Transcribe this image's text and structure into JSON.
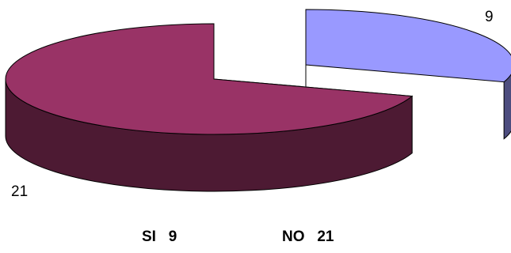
{
  "chart_data": {
    "type": "pie",
    "style": "3d-exploded",
    "categories": [
      "SI",
      "NO"
    ],
    "values": [
      9,
      21
    ],
    "data_labels": [
      "9",
      "21"
    ],
    "colors": {
      "SI": {
        "top": "#9999ff",
        "side": "#4d4d7f"
      },
      "NO": {
        "top": "#993366",
        "side": "#4d1a33"
      }
    }
  },
  "legend": {
    "items": [
      {
        "name": "SI",
        "value": "9",
        "text": "SI   9"
      },
      {
        "name": "NO",
        "value": "21",
        "text": "NO   21"
      }
    ]
  }
}
